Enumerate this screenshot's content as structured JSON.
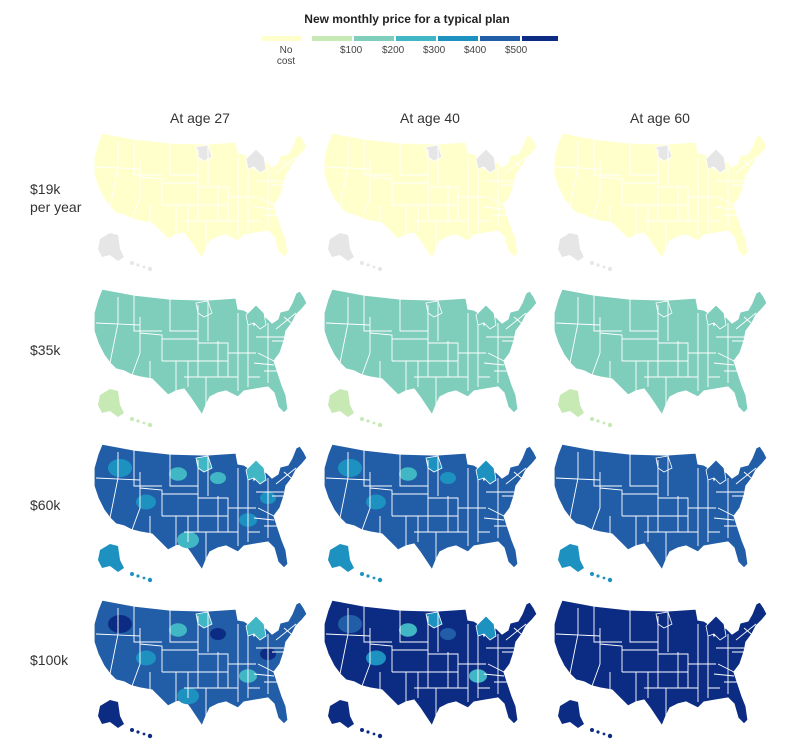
{
  "legend": {
    "title": "New monthly price for a typical plan",
    "no_cost_line1": "No",
    "no_cost_line2": "cost",
    "ticks": [
      "$100",
      "$200",
      "$300",
      "$400",
      "$500"
    ],
    "colors": [
      "#ffffcc",
      "#c7e9b4",
      "#7fcdbb",
      "#41b6c4",
      "#1d91c0",
      "#225ea8",
      "#0c2c84"
    ]
  },
  "columns": [
    "At age 27",
    "At age 40",
    "At age 60"
  ],
  "rows": [
    {
      "label_line1": "$19k",
      "label_line2": "per year"
    },
    {
      "label_line1": "$35k",
      "label_line2": ""
    },
    {
      "label_line1": "$60k",
      "label_line2": ""
    },
    {
      "label_line1": "$100k",
      "label_line2": ""
    }
  ],
  "maps": [
    [
      {
        "base": "#ffffcc",
        "alaska": "#e6e6e6",
        "na": "#e6e6e6",
        "patches": []
      },
      {
        "base": "#ffffcc",
        "alaska": "#e6e6e6",
        "na": "#e6e6e6",
        "patches": []
      },
      {
        "base": "#ffffcc",
        "alaska": "#e6e6e6",
        "na": "#e6e6e6",
        "patches": []
      }
    ],
    [
      {
        "base": "#7fcdbb",
        "alaska": "#c7e9b4",
        "na": "#7fcdbb",
        "patches": []
      },
      {
        "base": "#7fcdbb",
        "alaska": "#c7e9b4",
        "na": "#7fcdbb",
        "patches": []
      },
      {
        "base": "#7fcdbb",
        "alaska": "#c7e9b4",
        "na": "#7fcdbb",
        "patches": []
      }
    ],
    [
      {
        "base": "#225ea8",
        "alaska": "#1d91c0",
        "na": "#41b6c4",
        "patches": [
          "#1d91c0",
          "#41b6c4",
          "#1d91c0",
          "#41b6c4",
          "#1d91c0",
          "#41b6c4",
          "#1d91c0"
        ]
      },
      {
        "base": "#225ea8",
        "alaska": "#1d91c0",
        "na": "#1d91c0",
        "patches": [
          "#1d91c0",
          "#41b6c4",
          "#1d91c0",
          "#1d91c0"
        ]
      },
      {
        "base": "#225ea8",
        "alaska": "#1d91c0",
        "na": "#225ea8",
        "patches": [
          "#225ea8"
        ]
      }
    ],
    [
      {
        "base": "#225ea8",
        "alaska": "#0c2c84",
        "na": "#41b6c4",
        "patches": [
          "#0c2c84",
          "#41b6c4",
          "#1d91c0",
          "#0c2c84",
          "#41b6c4",
          "#1d91c0",
          "#0c2c84"
        ]
      },
      {
        "base": "#0c2c84",
        "alaska": "#0c2c84",
        "na": "#1d91c0",
        "patches": [
          "#225ea8",
          "#41b6c4",
          "#1d91c0",
          "#225ea8",
          "#41b6c4"
        ]
      },
      {
        "base": "#0c2c84",
        "alaska": "#0c2c84",
        "na": "#0c2c84",
        "patches": [
          "#0c2c84"
        ]
      }
    ]
  ]
}
